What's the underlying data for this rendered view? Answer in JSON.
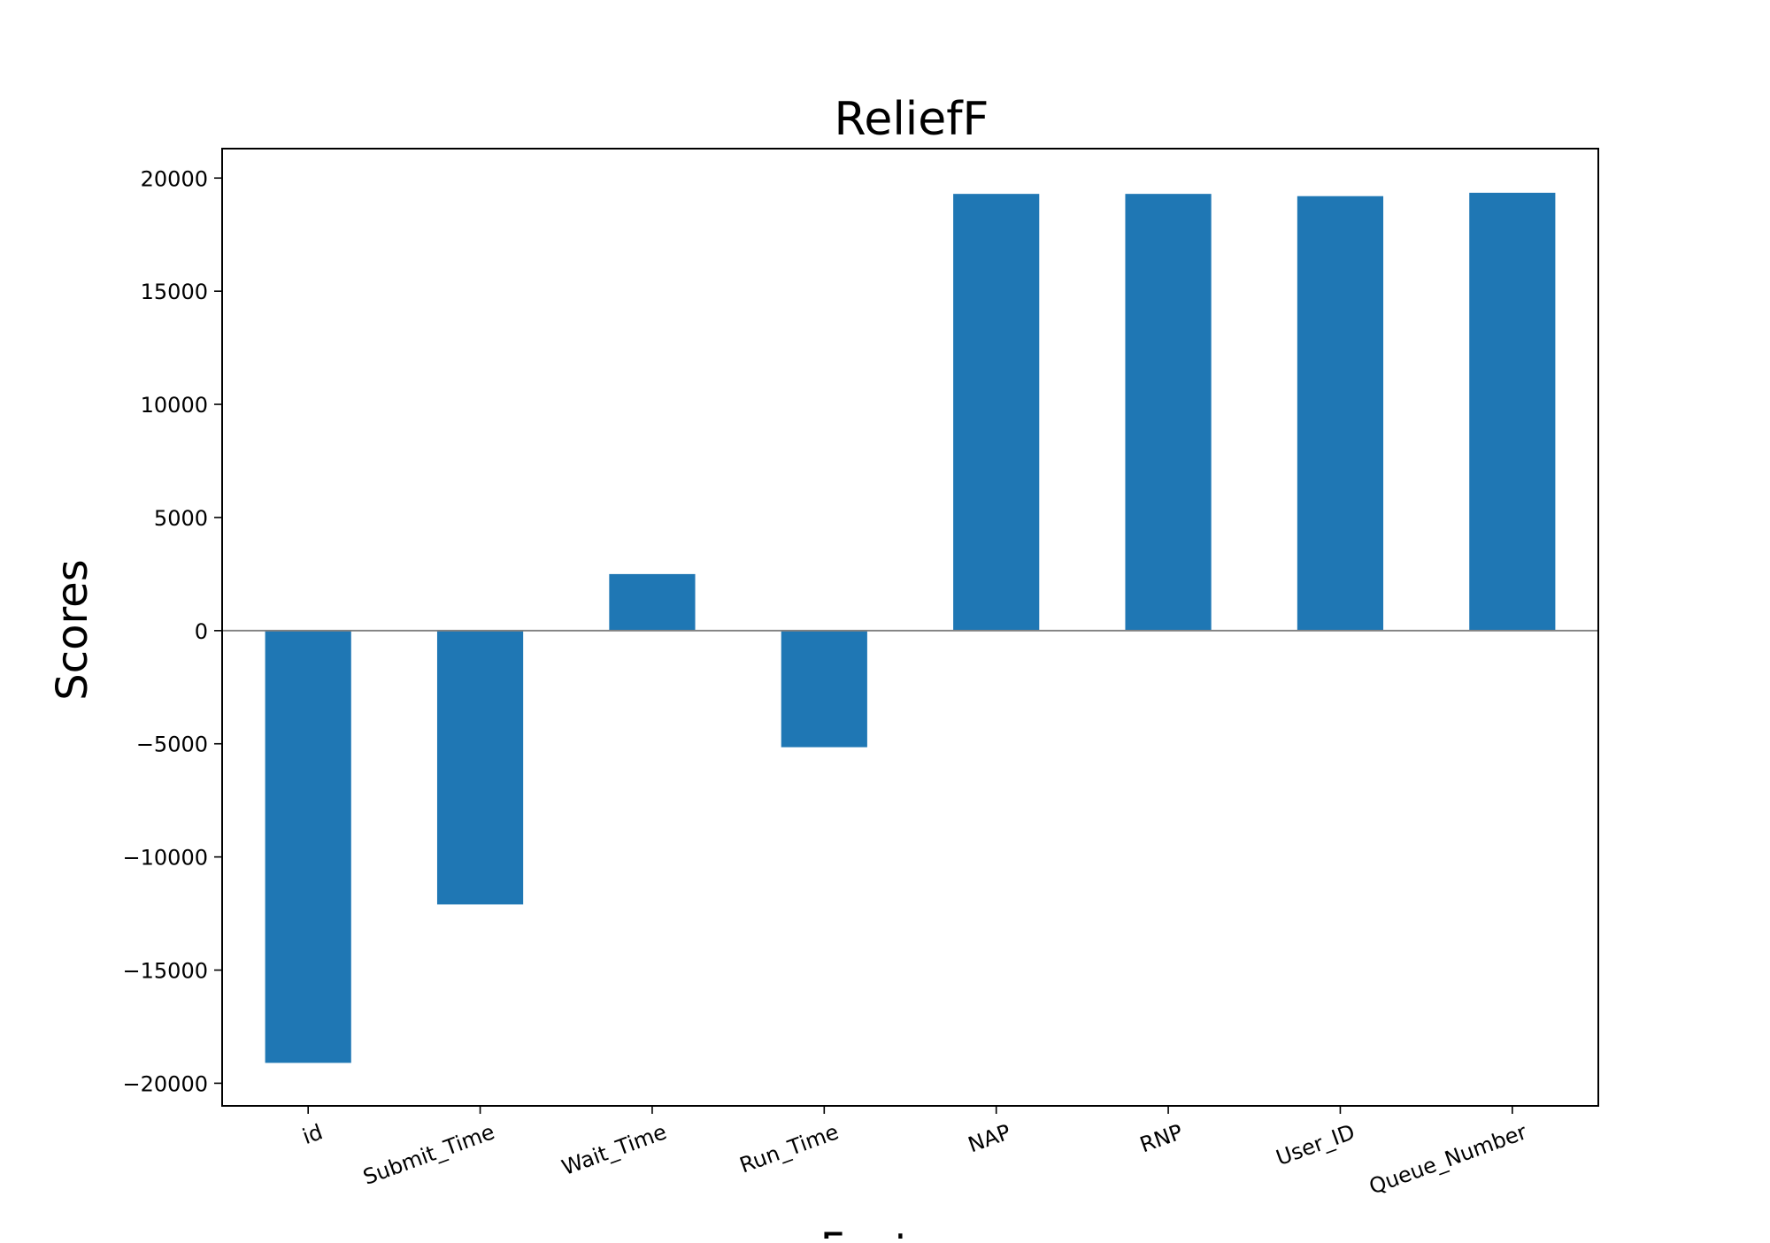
{
  "chart_data": {
    "type": "bar",
    "title": "ReliefF",
    "xlabel": "Features",
    "ylabel": "Scores",
    "categories": [
      "id",
      "Submit_Time",
      "Wait_Time",
      "Run_Time",
      "NAP",
      "RNP",
      "User_ID",
      "Queue_Number"
    ],
    "values": [
      -19100,
      -12100,
      2500,
      -5150,
      19300,
      19300,
      19200,
      19350
    ],
    "ylim": [
      -21000,
      21300
    ],
    "yticks": [
      20000,
      15000,
      10000,
      5000,
      0,
      -5000,
      -10000,
      -15000,
      -20000
    ],
    "ytick_labels": [
      "20000",
      "15000",
      "10000",
      "5000",
      "0",
      "−5000",
      "−10000",
      "−15000",
      "−20000"
    ],
    "bar_color": "#1f77b4",
    "zero_line_color": "#808080",
    "grid": false,
    "legend": "none"
  }
}
